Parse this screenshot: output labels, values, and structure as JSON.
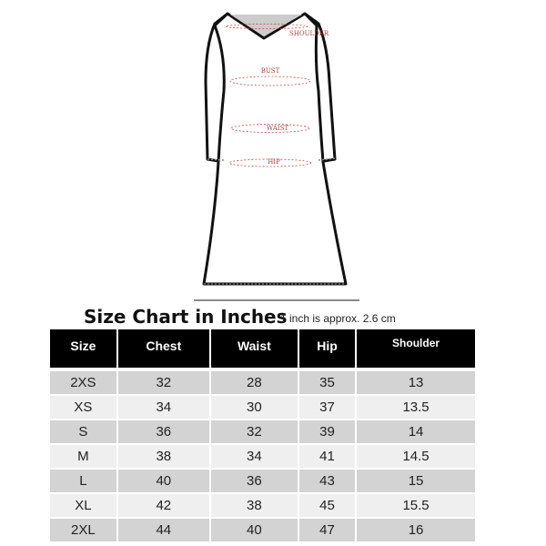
{
  "diagram": {
    "labels": {
      "shoulder": "SHOULDER",
      "bust": "BUST",
      "waist": "WAIST",
      "hip": "HIP"
    },
    "measure_color": "#c0504d"
  },
  "title": "Size Chart in Inches",
  "note": "1 inch is approx. 2.6 cm",
  "table": {
    "headers": [
      "Size",
      "Chest",
      "Waist",
      "Hip",
      "Shoulder"
    ],
    "rows": [
      [
        "2XS",
        "32",
        "28",
        "35",
        "13"
      ],
      [
        "XS",
        "34",
        "30",
        "37",
        "13.5"
      ],
      [
        "S",
        "36",
        "32",
        "39",
        "14"
      ],
      [
        "M",
        "38",
        "34",
        "41",
        "14.5"
      ],
      [
        "L",
        "40",
        "36",
        "43",
        "15"
      ],
      [
        "XL",
        "42",
        "38",
        "45",
        "15.5"
      ],
      [
        "2XL",
        "44",
        "40",
        "47",
        "16"
      ]
    ]
  }
}
